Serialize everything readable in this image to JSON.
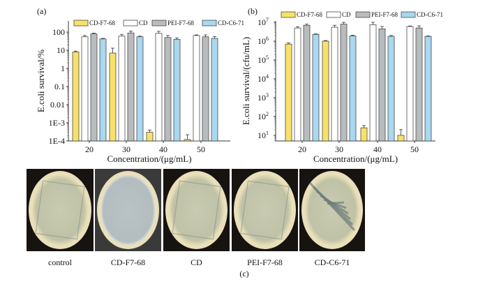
{
  "colors": {
    "CD-F7-68": "#f7e16a",
    "CD": "#ffffff",
    "PEI-F7-68": "#b9bcbe",
    "CD-C6-71": "#a9d8ef"
  },
  "chart_data": [
    {
      "type": "bar",
      "panel_label": "(a)",
      "xlabel": "Concentration/(μg/mL)",
      "ylabel": "E.coli survival/%",
      "yscale": "log",
      "ylim": [
        0.0001,
        100
      ],
      "yticks": [
        {
          "v": 0.0001,
          "label": "1E-4"
        },
        {
          "v": 0.001,
          "label": "1E-3"
        },
        {
          "v": 0.01,
          "label": "0.01"
        },
        {
          "v": 0.1,
          "label": "0.1"
        },
        {
          "v": 1,
          "label": "1"
        },
        {
          "v": 10,
          "label": "10"
        },
        {
          "v": 100,
          "label": "100"
        }
      ],
      "categories": [
        "20",
        "30",
        "40",
        "50"
      ],
      "legend_position": "top",
      "series": [
        {
          "name": "CD-F7-68",
          "values": [
            8,
            7,
            0.0003,
            0.00012
          ],
          "errors": [
            1,
            6,
            0.0001,
            0.0001
          ]
        },
        {
          "name": "CD",
          "values": [
            55,
            60,
            85,
            65
          ],
          "errors": [
            10,
            15,
            25,
            5
          ]
        },
        {
          "name": "PEI-F7-68",
          "values": [
            80,
            90,
            50,
            55
          ],
          "errors": [
            8,
            25,
            15,
            15
          ]
        },
        {
          "name": "CD-C6-71",
          "values": [
            42,
            55,
            40,
            45
          ],
          "errors": [
            3,
            5,
            8,
            12
          ]
        }
      ]
    },
    {
      "type": "bar",
      "panel_label": "(b)",
      "xlabel": "Concentration/(μg/mL)",
      "ylabel": "E.coli survival/(cfu/mL)",
      "yscale": "log",
      "ylim": [
        5,
        10000000
      ],
      "yticks": [
        {
          "v": 10,
          "label": "10",
          "exp": "1"
        },
        {
          "v": 100,
          "label": "10",
          "exp": "2"
        },
        {
          "v": 1000,
          "label": "10",
          "exp": "3"
        },
        {
          "v": 10000,
          "label": "10",
          "exp": "4"
        },
        {
          "v": 100000,
          "label": "10",
          "exp": "5"
        },
        {
          "v": 1000000,
          "label": "10",
          "exp": "6"
        },
        {
          "v": 10000000,
          "label": "10",
          "exp": "7"
        }
      ],
      "categories": [
        "20",
        "30",
        "40",
        "50"
      ],
      "legend_position": "top",
      "series": [
        {
          "name": "CD-F7-68",
          "values": [
            700000,
            1000000,
            25,
            10
          ],
          "errors": [
            100000,
            80000,
            8,
            10
          ]
        },
        {
          "name": "CD",
          "values": [
            5000000,
            5500000,
            7500000,
            6000000
          ],
          "errors": [
            800000,
            1500000,
            2500000,
            400000
          ]
        },
        {
          "name": "PEI-F7-68",
          "values": [
            7000000,
            8000000,
            4500000,
            5000000
          ],
          "errors": [
            1000000,
            2000000,
            1500000,
            1500000
          ]
        },
        {
          "name": "CD-C6-71",
          "values": [
            2300000,
            1900000,
            1800000,
            1800000
          ],
          "errors": [
            150000,
            150000,
            200000,
            100000
          ]
        }
      ]
    }
  ],
  "photos": {
    "panel_label": "(c)",
    "labels": [
      "control",
      "CD-F7-68",
      "CD",
      "PEI-F7-68",
      "CD-C6-71"
    ]
  }
}
